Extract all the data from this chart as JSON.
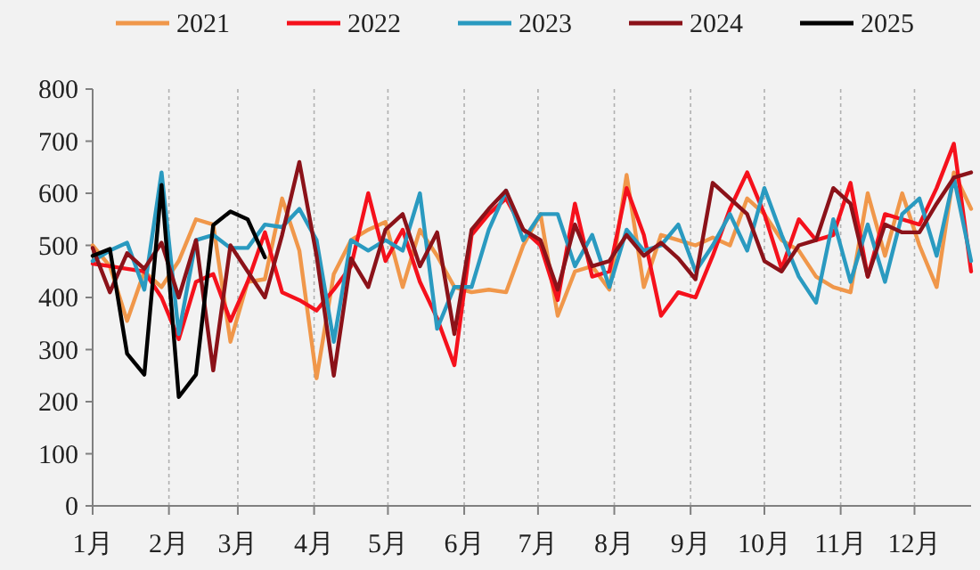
{
  "chart_data": {
    "type": "line",
    "x": [
      "--01-01",
      "--01-08",
      "--01-15",
      "--01-22",
      "--01-29",
      "--02-05",
      "--02-12",
      "--02-19",
      "--02-26",
      "--03-05",
      "--03-12",
      "--03-19",
      "--03-26",
      "--04-02",
      "--04-09",
      "--04-16",
      "--04-23",
      "--04-30",
      "--05-07",
      "--05-14",
      "--05-21",
      "--05-28",
      "--06-04",
      "--06-11",
      "--06-18",
      "--06-25",
      "--07-02",
      "--07-09",
      "--07-16",
      "--07-23",
      "--07-30",
      "--08-06",
      "--08-13",
      "--08-20",
      "--08-27",
      "--09-03",
      "--09-10",
      "--09-17",
      "--09-24",
      "--10-01",
      "--10-08",
      "--10-15",
      "--10-22",
      "--10-29",
      "--11-05",
      "--11-12",
      "--11-19",
      "--11-26",
      "--12-03",
      "--12-10",
      "--12-17",
      "--12-24"
    ],
    "xlim": [
      "--01-01",
      "--12-24"
    ],
    "xticks": [
      {
        "value": "--01-01",
        "label": "1月"
      },
      {
        "value": "--02-01",
        "label": "2月"
      },
      {
        "value": "--03-01",
        "label": "3月"
      },
      {
        "value": "--04-01",
        "label": "4月"
      },
      {
        "value": "--05-01",
        "label": "5月"
      },
      {
        "value": "--06-01",
        "label": "6月"
      },
      {
        "value": "--07-01",
        "label": "7月"
      },
      {
        "value": "--08-01",
        "label": "8月"
      },
      {
        "value": "--09-01",
        "label": "9月"
      },
      {
        "value": "--10-01",
        "label": "10月"
      },
      {
        "value": "--11-01",
        "label": "11月"
      },
      {
        "value": "--12-01",
        "label": "12月"
      }
    ],
    "ylim": [
      0,
      800
    ],
    "yticks": [
      0,
      100,
      200,
      300,
      400,
      500,
      600,
      700,
      800
    ],
    "grid": "x",
    "legend": "top",
    "marker": "none",
    "line_style": "solid",
    "series": [
      {
        "name": "2021",
        "color": "#f0974a",
        "values": [
          500,
          460,
          355,
          450,
          420,
          470,
          550,
          540,
          315,
          430,
          435,
          590,
          490,
          245,
          445,
          510,
          530,
          545,
          420,
          530,
          480,
          420,
          410,
          415,
          410,
          500,
          560,
          365,
          450,
          460,
          415,
          635,
          420,
          520,
          510,
          500,
          515,
          500,
          590,
          560,
          510,
          490,
          440,
          420,
          410,
          600,
          480,
          600,
          500,
          420,
          640,
          570
        ]
      },
      {
        "name": "2022",
        "color": "#f5111c",
        "values": [
          465,
          460,
          455,
          450,
          400,
          320,
          430,
          445,
          355,
          430,
          525,
          410,
          395,
          375,
          415,
          460,
          600,
          470,
          530,
          430,
          360,
          270,
          520,
          560,
          590,
          530,
          500,
          395,
          580,
          440,
          450,
          610,
          520,
          365,
          410,
          400,
          480,
          570,
          640,
          560,
          455,
          550,
          510,
          520,
          620,
          440,
          560,
          550,
          540,
          610,
          695,
          450
        ]
      },
      {
        "name": "2023",
        "color": "#2a9ac0",
        "values": [
          470,
          490,
          505,
          415,
          640,
          330,
          510,
          520,
          495,
          495,
          540,
          535,
          570,
          510,
          315,
          510,
          490,
          510,
          490,
          600,
          340,
          420,
          420,
          530,
          605,
          510,
          560,
          560,
          460,
          520,
          420,
          530,
          490,
          500,
          540,
          450,
          500,
          560,
          490,
          610,
          520,
          440,
          390,
          550,
          430,
          540,
          430,
          560,
          590,
          480,
          630,
          470
        ]
      },
      {
        "name": "2024",
        "color": "#8b1219",
        "values": [
          495,
          410,
          485,
          455,
          505,
          400,
          510,
          260,
          500,
          450,
          400,
          520,
          660,
          480,
          250,
          475,
          420,
          530,
          560,
          460,
          525,
          330,
          530,
          570,
          605,
          530,
          510,
          415,
          540,
          460,
          470,
          520,
          480,
          505,
          475,
          435,
          620,
          590,
          560,
          470,
          450,
          500,
          510,
          610,
          580,
          440,
          540,
          525,
          525,
          580,
          630,
          640
        ]
      },
      {
        "name": "2025",
        "color": "#000000",
        "values": [
          480,
          493,
          292,
          252,
          616,
          209,
          252,
          539,
          565,
          550,
          477,
          null,
          null,
          null,
          null,
          null,
          null,
          null,
          null,
          null,
          null,
          null,
          null,
          null,
          null,
          null,
          null,
          null,
          null,
          null,
          null,
          null,
          null,
          null,
          null,
          null,
          null,
          null,
          null,
          null,
          null,
          null,
          null,
          null,
          null,
          null,
          null,
          null,
          null,
          null,
          null,
          null
        ]
      }
    ]
  }
}
